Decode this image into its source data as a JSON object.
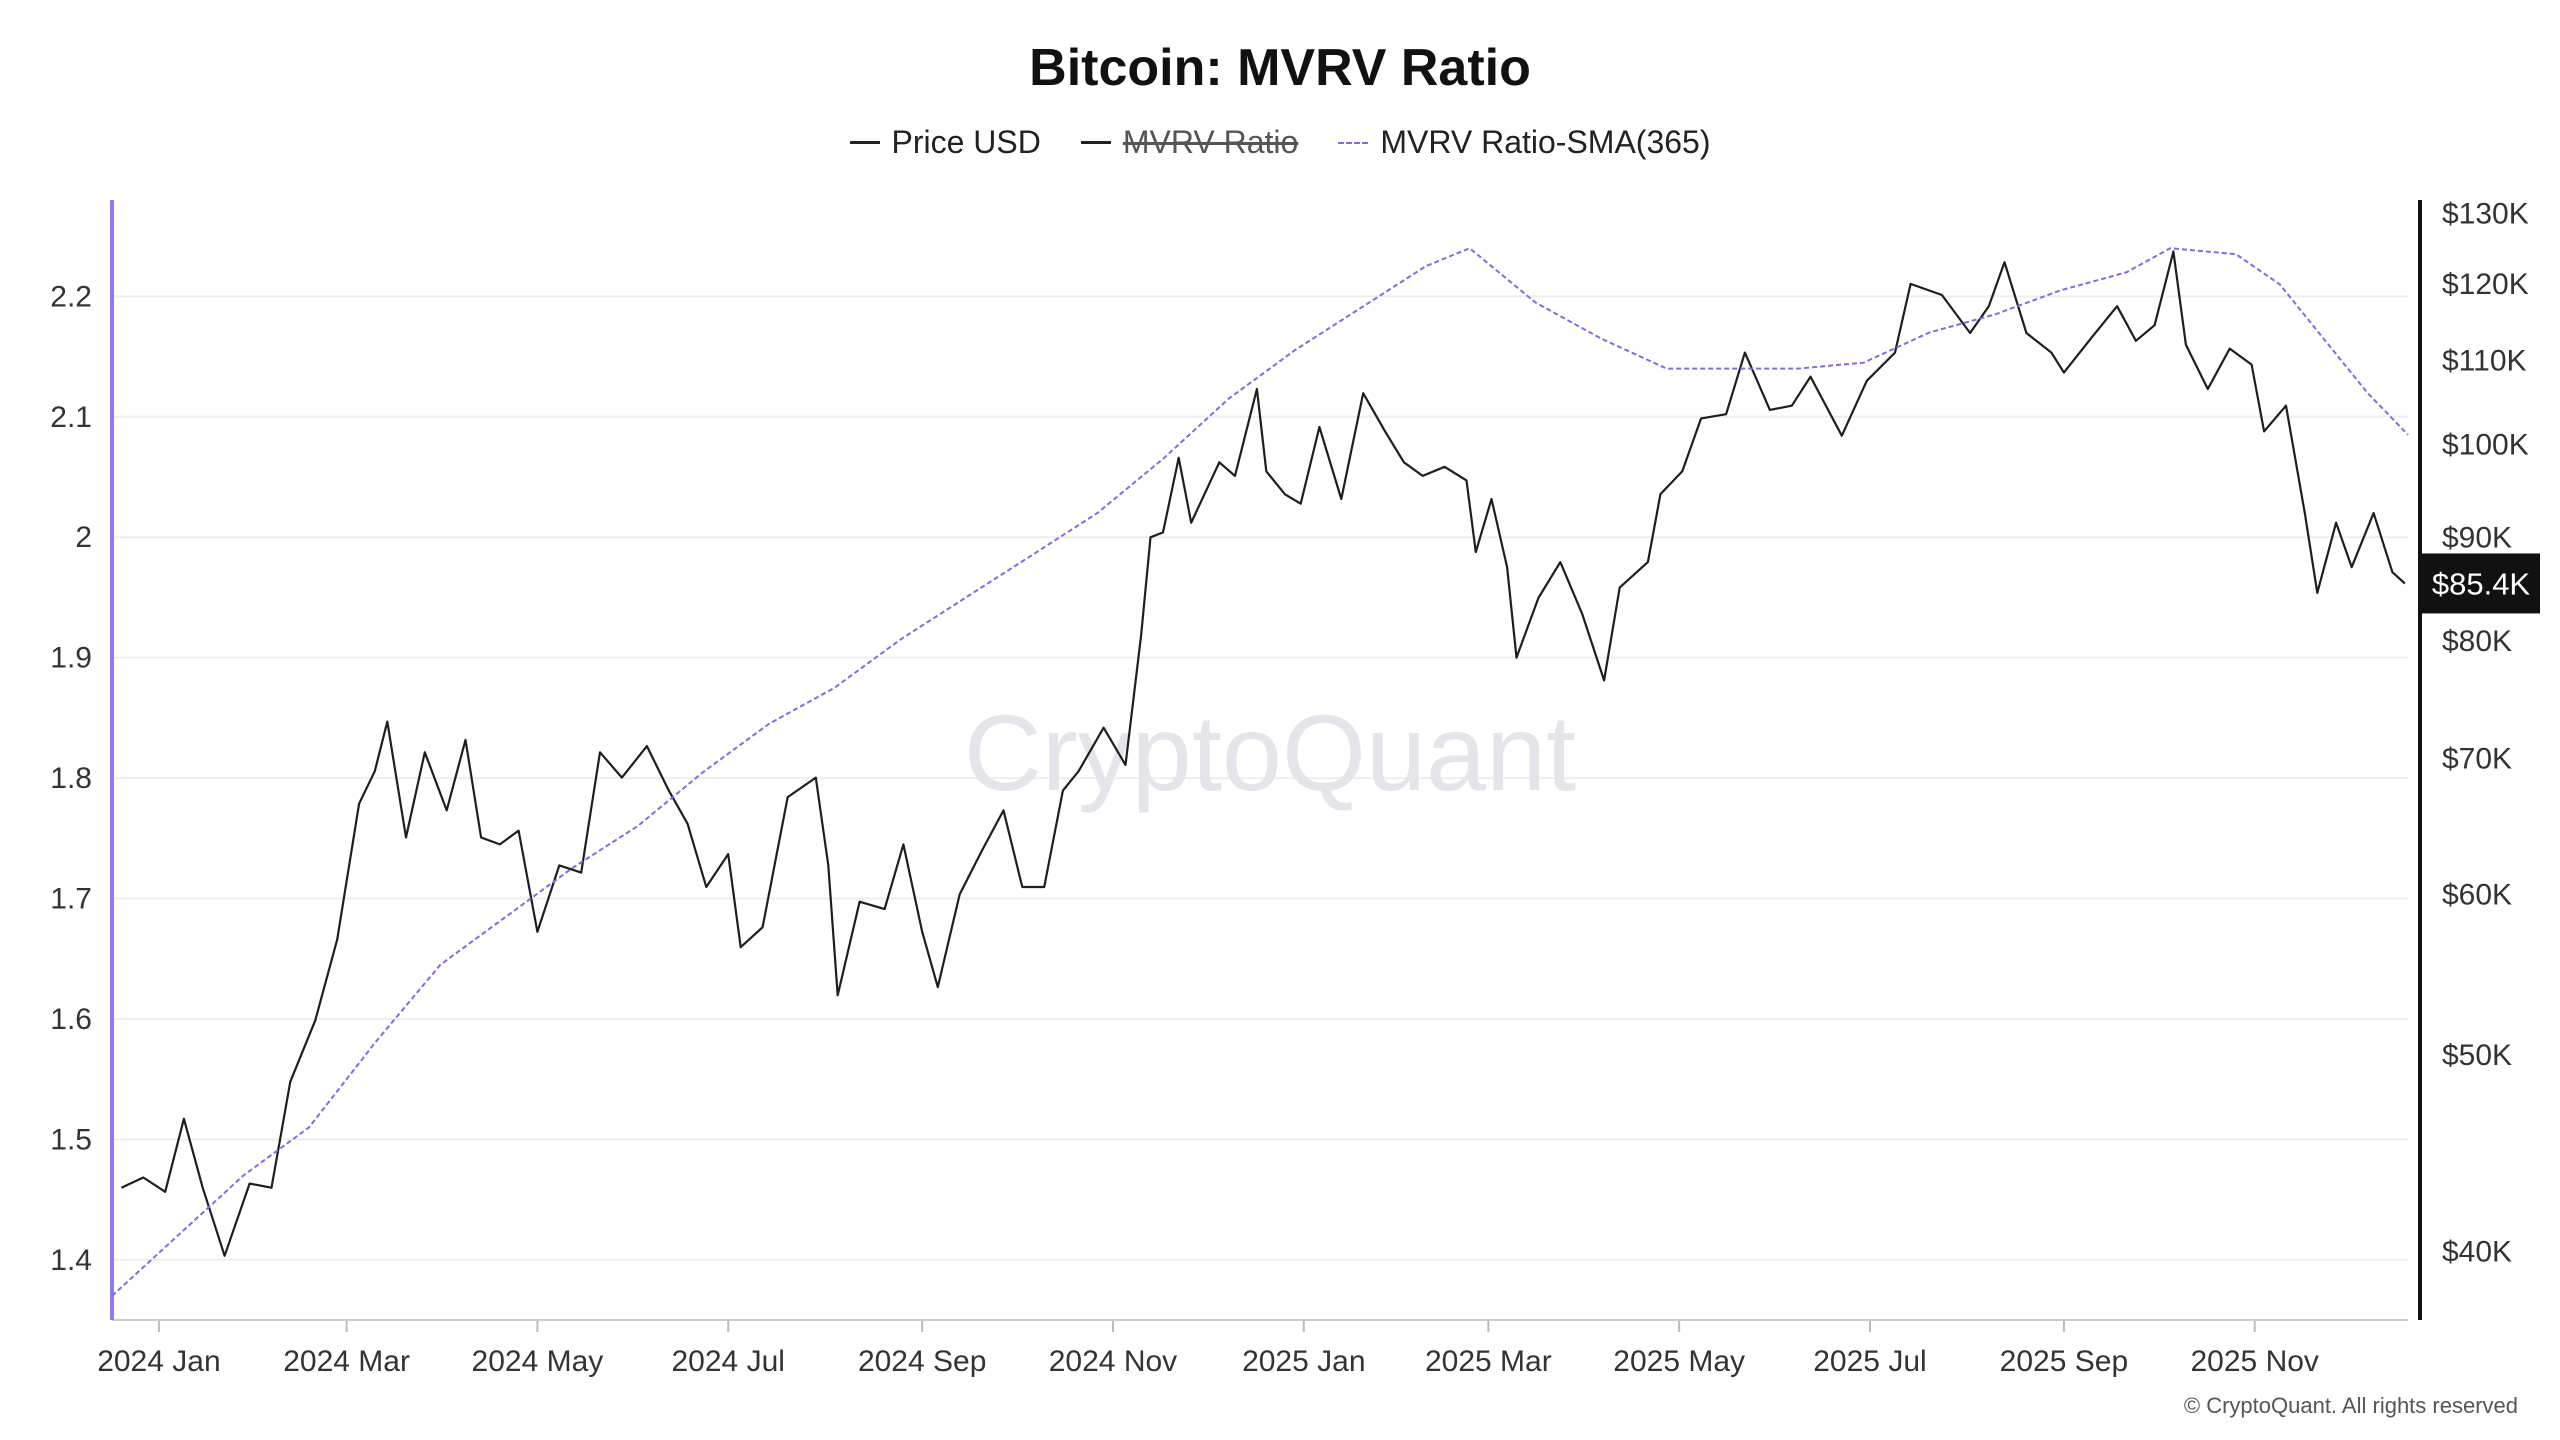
{
  "chart_data": {
    "type": "line",
    "title": "Bitcoin: MVRV Ratio",
    "legend": {
      "placement": "top-center",
      "entries": [
        {
          "name": "Price USD",
          "color": "#222222",
          "style": "solid",
          "enabled": true
        },
        {
          "name": "MVRV Ratio",
          "color": "#222222",
          "style": "solid",
          "enabled": false
        },
        {
          "name": "MVRV Ratio-SMA(365)",
          "color": "#7b6fe0",
          "style": "dashed",
          "enabled": true
        }
      ]
    },
    "x_axis": {
      "range": [
        "2023-12-17",
        "2025-12-20"
      ],
      "ticks": [
        {
          "date": "2024-01-01",
          "label": "2024 Jan"
        },
        {
          "date": "2024-03-01",
          "label": "2024 Mar"
        },
        {
          "date": "2024-05-01",
          "label": "2024 May"
        },
        {
          "date": "2024-07-01",
          "label": "2024 Jul"
        },
        {
          "date": "2024-09-01",
          "label": "2024 Sep"
        },
        {
          "date": "2024-11-01",
          "label": "2024 Nov"
        },
        {
          "date": "2025-01-01",
          "label": "2025 Jan"
        },
        {
          "date": "2025-03-01",
          "label": "2025 Mar"
        },
        {
          "date": "2025-05-01",
          "label": "2025 May"
        },
        {
          "date": "2025-07-01",
          "label": "2025 Jul"
        },
        {
          "date": "2025-09-01",
          "label": "2025 Sep"
        },
        {
          "date": "2025-11-01",
          "label": "2025 Nov"
        }
      ]
    },
    "y_left": {
      "range": [
        1.35,
        2.28
      ],
      "ticks": [
        {
          "value": 1.4,
          "label": "1.4"
        },
        {
          "value": 1.5,
          "label": "1.5"
        },
        {
          "value": 1.6,
          "label": "1.6"
        },
        {
          "value": 1.7,
          "label": "1.7"
        },
        {
          "value": 1.8,
          "label": "1.8"
        },
        {
          "value": 1.9,
          "label": "1.9"
        },
        {
          "value": 2.0,
          "label": "2"
        },
        {
          "value": 2.1,
          "label": "2.1"
        },
        {
          "value": 2.2,
          "label": "2.2"
        }
      ],
      "grid": true
    },
    "y_right": {
      "scale": "log",
      "range": [
        37000,
        132000
      ],
      "ticks": [
        {
          "value": 40000,
          "label": "$40K"
        },
        {
          "value": 50000,
          "label": "$50K"
        },
        {
          "value": 60000,
          "label": "$60K"
        },
        {
          "value": 70000,
          "label": "$70K"
        },
        {
          "value": 80000,
          "label": "$80K"
        },
        {
          "value": 90000,
          "label": "$90K"
        },
        {
          "value": 100000,
          "label": "$100K"
        },
        {
          "value": 110000,
          "label": "$110K"
        },
        {
          "value": 120000,
          "label": "$120K"
        },
        {
          "value": 130000,
          "label": "$130K"
        }
      ]
    },
    "last_price": {
      "value": 85400,
      "label": "$85.4K"
    },
    "series": [
      {
        "name": "Price USD",
        "axis": "right",
        "points": [
          [
            "2023-12-20",
            43000
          ],
          [
            "2023-12-27",
            43500
          ],
          [
            "2024-01-03",
            42800
          ],
          [
            "2024-01-09",
            46500
          ],
          [
            "2024-01-15",
            43000
          ],
          [
            "2024-01-22",
            39800
          ],
          [
            "2024-01-30",
            43200
          ],
          [
            "2024-02-06",
            43000
          ],
          [
            "2024-02-12",
            48500
          ],
          [
            "2024-02-20",
            52000
          ],
          [
            "2024-02-27",
            57000
          ],
          [
            "2024-03-05",
            66500
          ],
          [
            "2024-03-10",
            69000
          ],
          [
            "2024-03-14",
            73000
          ],
          [
            "2024-03-20",
            64000
          ],
          [
            "2024-03-26",
            70500
          ],
          [
            "2024-04-02",
            66000
          ],
          [
            "2024-04-08",
            71500
          ],
          [
            "2024-04-13",
            64000
          ],
          [
            "2024-04-19",
            63500
          ],
          [
            "2024-04-25",
            64500
          ],
          [
            "2024-05-01",
            57500
          ],
          [
            "2024-05-08",
            62000
          ],
          [
            "2024-05-15",
            61500
          ],
          [
            "2024-05-21",
            70500
          ],
          [
            "2024-05-28",
            68500
          ],
          [
            "2024-06-05",
            71000
          ],
          [
            "2024-06-12",
            67500
          ],
          [
            "2024-06-18",
            65000
          ],
          [
            "2024-06-24",
            60500
          ],
          [
            "2024-07-01",
            62800
          ],
          [
            "2024-07-05",
            56500
          ],
          [
            "2024-07-12",
            57800
          ],
          [
            "2024-07-20",
            67000
          ],
          [
            "2024-07-29",
            68500
          ],
          [
            "2024-08-02",
            62000
          ],
          [
            "2024-08-05",
            53500
          ],
          [
            "2024-08-12",
            59500
          ],
          [
            "2024-08-20",
            59000
          ],
          [
            "2024-08-26",
            63500
          ],
          [
            "2024-09-01",
            57500
          ],
          [
            "2024-09-06",
            54000
          ],
          [
            "2024-09-13",
            60000
          ],
          [
            "2024-09-20",
            63000
          ],
          [
            "2024-09-27",
            66000
          ],
          [
            "2024-10-03",
            60500
          ],
          [
            "2024-10-10",
            60500
          ],
          [
            "2024-10-16",
            67500
          ],
          [
            "2024-10-21",
            69000
          ],
          [
            "2024-10-29",
            72500
          ],
          [
            "2024-11-05",
            69500
          ],
          [
            "2024-11-10",
            80500
          ],
          [
            "2024-11-13",
            90000
          ],
          [
            "2024-11-17",
            90500
          ],
          [
            "2024-11-22",
            98500
          ],
          [
            "2024-11-26",
            91500
          ],
          [
            "2024-12-05",
            98000
          ],
          [
            "2024-12-10",
            96500
          ],
          [
            "2024-12-17",
            106500
          ],
          [
            "2024-12-20",
            97000
          ],
          [
            "2024-12-26",
            94500
          ],
          [
            "2024-12-31",
            93500
          ],
          [
            "2025-01-06",
            102000
          ],
          [
            "2025-01-13",
            94000
          ],
          [
            "2025-01-20",
            106000
          ],
          [
            "2025-01-27",
            101500
          ],
          [
            "2025-02-02",
            98000
          ],
          [
            "2025-02-08",
            96500
          ],
          [
            "2025-02-15",
            97500
          ],
          [
            "2025-02-22",
            96000
          ],
          [
            "2025-02-25",
            88500
          ],
          [
            "2025-03-02",
            94000
          ],
          [
            "2025-03-07",
            87000
          ],
          [
            "2025-03-10",
            78500
          ],
          [
            "2025-03-17",
            84000
          ],
          [
            "2025-03-24",
            87500
          ],
          [
            "2025-03-31",
            82500
          ],
          [
            "2025-04-07",
            76500
          ],
          [
            "2025-04-12",
            85000
          ],
          [
            "2025-04-21",
            87500
          ],
          [
            "2025-04-25",
            94500
          ],
          [
            "2025-05-02",
            97000
          ],
          [
            "2025-05-08",
            103000
          ],
          [
            "2025-05-16",
            103500
          ],
          [
            "2025-05-22",
            111000
          ],
          [
            "2025-05-30",
            104000
          ],
          [
            "2025-06-06",
            104500
          ],
          [
            "2025-06-12",
            108000
          ],
          [
            "2025-06-22",
            101000
          ],
          [
            "2025-06-30",
            107500
          ],
          [
            "2025-07-09",
            111000
          ],
          [
            "2025-07-14",
            120000
          ],
          [
            "2025-07-24",
            118500
          ],
          [
            "2025-08-02",
            113500
          ],
          [
            "2025-08-08",
            117000
          ],
          [
            "2025-08-13",
            123000
          ],
          [
            "2025-08-20",
            113500
          ],
          [
            "2025-08-28",
            111000
          ],
          [
            "2025-09-01",
            108500
          ],
          [
            "2025-09-10",
            113000
          ],
          [
            "2025-09-18",
            117000
          ],
          [
            "2025-09-24",
            112500
          ],
          [
            "2025-09-30",
            114500
          ],
          [
            "2025-10-06",
            124500
          ],
          [
            "2025-10-10",
            112000
          ],
          [
            "2025-10-17",
            106500
          ],
          [
            "2025-10-24",
            111500
          ],
          [
            "2025-10-31",
            109500
          ],
          [
            "2025-11-04",
            101500
          ],
          [
            "2025-11-11",
            104500
          ],
          [
            "2025-11-17",
            92500
          ],
          [
            "2025-11-21",
            84500
          ],
          [
            "2025-11-27",
            91500
          ],
          [
            "2025-12-02",
            87000
          ],
          [
            "2025-12-09",
            92500
          ],
          [
            "2025-12-15",
            86500
          ],
          [
            "2025-12-19",
            85400
          ]
        ]
      },
      {
        "name": "MVRV Ratio-SMA(365)",
        "axis": "left",
        "points": [
          [
            "2023-12-17",
            1.37
          ],
          [
            "2024-01-07",
            1.42
          ],
          [
            "2024-01-28",
            1.47
          ],
          [
            "2024-02-18",
            1.51
          ],
          [
            "2024-03-10",
            1.58
          ],
          [
            "2024-03-31",
            1.645
          ],
          [
            "2024-04-21",
            1.685
          ],
          [
            "2024-05-12",
            1.725
          ],
          [
            "2024-06-02",
            1.76
          ],
          [
            "2024-06-23",
            1.805
          ],
          [
            "2024-07-14",
            1.845
          ],
          [
            "2024-08-04",
            1.875
          ],
          [
            "2024-08-25",
            1.915
          ],
          [
            "2024-09-15",
            1.95
          ],
          [
            "2024-10-06",
            1.985
          ],
          [
            "2024-10-27",
            2.02
          ],
          [
            "2024-11-17",
            2.065
          ],
          [
            "2024-12-08",
            2.115
          ],
          [
            "2024-12-29",
            2.155
          ],
          [
            "2025-01-19",
            2.19
          ],
          [
            "2025-02-09",
            2.225
          ],
          [
            "2025-02-23",
            2.24
          ],
          [
            "2025-03-02",
            2.225
          ],
          [
            "2025-03-16",
            2.195
          ],
          [
            "2025-04-06",
            2.165
          ],
          [
            "2025-04-27",
            2.14
          ],
          [
            "2025-05-18",
            2.14
          ],
          [
            "2025-06-08",
            2.14
          ],
          [
            "2025-06-29",
            2.145
          ],
          [
            "2025-07-20",
            2.17
          ],
          [
            "2025-08-10",
            2.185
          ],
          [
            "2025-08-31",
            2.205
          ],
          [
            "2025-09-21",
            2.22
          ],
          [
            "2025-10-05",
            2.24
          ],
          [
            "2025-10-26",
            2.235
          ],
          [
            "2025-11-09",
            2.21
          ],
          [
            "2025-11-23",
            2.165
          ],
          [
            "2025-12-07",
            2.12
          ],
          [
            "2025-12-20",
            2.085
          ]
        ]
      }
    ],
    "watermark": "CryptoQuant",
    "copyright": "© CryptoQuant. All rights reserved"
  }
}
